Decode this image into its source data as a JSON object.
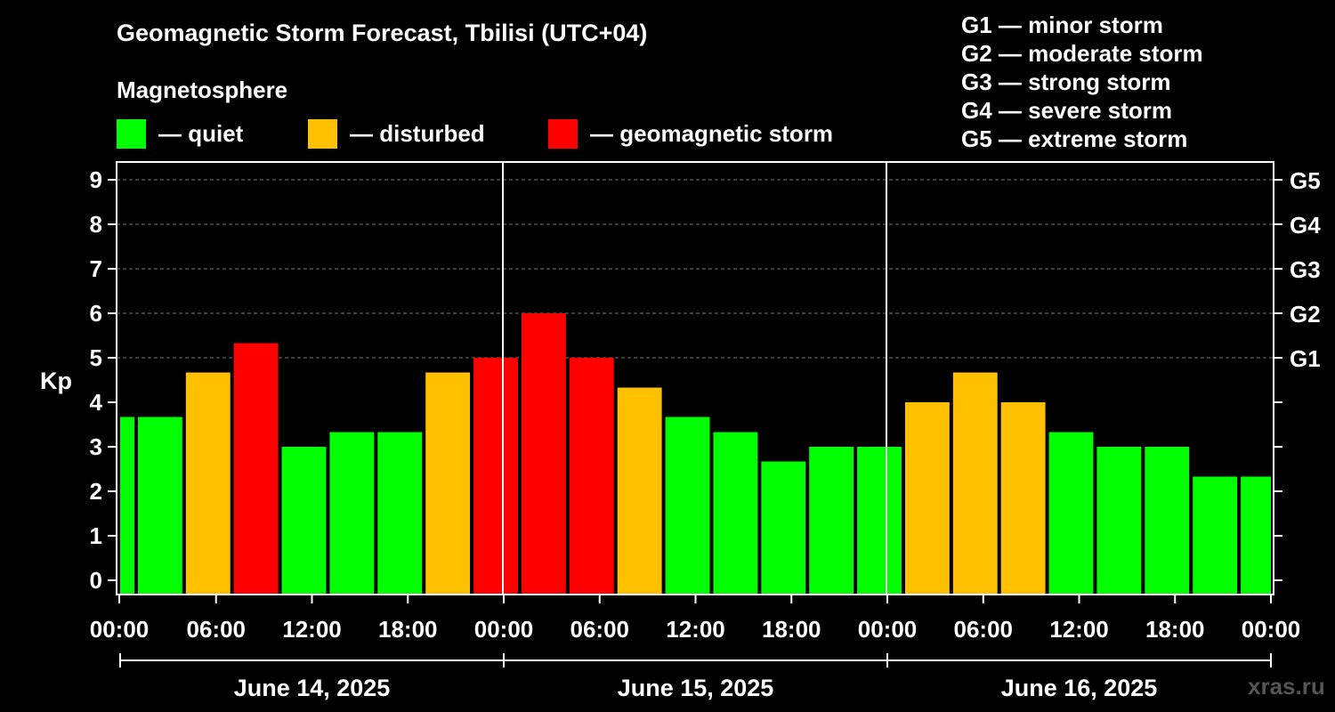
{
  "title": "Geomagnetic Storm Forecast, Tbilisi (UTC+04)",
  "legend": {
    "heading": "Magnetosphere",
    "items": [
      {
        "label": "— quiet",
        "color": "#00ff00"
      },
      {
        "label": "— disturbed",
        "color": "#ffc000"
      },
      {
        "label": "— geomagnetic storm",
        "color": "#ff0000"
      }
    ]
  },
  "storm_scale": [
    "G1 — minor storm",
    "G2 — moderate storm",
    "G3 — strong storm",
    "G4 — severe storm",
    "G5 — extreme storm"
  ],
  "watermark": "xras.ru",
  "chart_data": {
    "type": "bar",
    "title": "Geomagnetic Storm Forecast, Tbilisi (UTC+04)",
    "ylabel": "Kp",
    "ylim": [
      0,
      9
    ],
    "yticks": [
      "0",
      "1",
      "2",
      "3",
      "4",
      "5",
      "6",
      "7",
      "8",
      "9"
    ],
    "right_axis_labels": [
      {
        "kp": 5,
        "label": "G1"
      },
      {
        "kp": 6,
        "label": "G2"
      },
      {
        "kp": 7,
        "label": "G3"
      },
      {
        "kp": 8,
        "label": "G4"
      },
      {
        "kp": 9,
        "label": "G5"
      }
    ],
    "x_tick_labels": [
      "00:00",
      "06:00",
      "12:00",
      "18:00",
      "00:00",
      "06:00",
      "12:00",
      "18:00",
      "00:00",
      "06:00",
      "12:00",
      "18:00",
      "00:00"
    ],
    "x_range_hours": [
      0,
      72
    ],
    "dates": [
      "June 14, 2025",
      "June 15, 2025",
      "June 16, 2025"
    ],
    "colors": {
      "quiet": "#00ff00",
      "disturbed": "#ffc000",
      "storm": "#ff0000"
    },
    "bars": [
      {
        "start": 0,
        "end": 1,
        "kp": 3.67,
        "level": "quiet"
      },
      {
        "start": 1,
        "end": 4,
        "kp": 3.67,
        "level": "quiet"
      },
      {
        "start": 4,
        "end": 7,
        "kp": 4.67,
        "level": "disturbed"
      },
      {
        "start": 7,
        "end": 10,
        "kp": 5.33,
        "level": "storm"
      },
      {
        "start": 10,
        "end": 13,
        "kp": 3.0,
        "level": "quiet"
      },
      {
        "start": 13,
        "end": 16,
        "kp": 3.33,
        "level": "quiet"
      },
      {
        "start": 16,
        "end": 19,
        "kp": 3.33,
        "level": "quiet"
      },
      {
        "start": 19,
        "end": 22,
        "kp": 4.67,
        "level": "disturbed"
      },
      {
        "start": 22,
        "end": 25,
        "kp": 5.0,
        "level": "storm"
      },
      {
        "start": 25,
        "end": 28,
        "kp": 6.0,
        "level": "storm"
      },
      {
        "start": 28,
        "end": 31,
        "kp": 5.0,
        "level": "storm"
      },
      {
        "start": 31,
        "end": 34,
        "kp": 4.33,
        "level": "disturbed"
      },
      {
        "start": 34,
        "end": 37,
        "kp": 3.67,
        "level": "quiet"
      },
      {
        "start": 37,
        "end": 40,
        "kp": 3.33,
        "level": "quiet"
      },
      {
        "start": 40,
        "end": 43,
        "kp": 2.67,
        "level": "quiet"
      },
      {
        "start": 43,
        "end": 46,
        "kp": 3.0,
        "level": "quiet"
      },
      {
        "start": 46,
        "end": 49,
        "kp": 3.0,
        "level": "quiet"
      },
      {
        "start": 49,
        "end": 52,
        "kp": 4.0,
        "level": "disturbed"
      },
      {
        "start": 52,
        "end": 55,
        "kp": 4.67,
        "level": "disturbed"
      },
      {
        "start": 55,
        "end": 58,
        "kp": 4.0,
        "level": "disturbed"
      },
      {
        "start": 58,
        "end": 61,
        "kp": 3.33,
        "level": "quiet"
      },
      {
        "start": 61,
        "end": 64,
        "kp": 3.0,
        "level": "quiet"
      },
      {
        "start": 64,
        "end": 67,
        "kp": 3.0,
        "level": "quiet"
      },
      {
        "start": 67,
        "end": 70,
        "kp": 2.33,
        "level": "quiet"
      },
      {
        "start": 70,
        "end": 72,
        "kp": 2.33,
        "level": "quiet"
      }
    ]
  }
}
